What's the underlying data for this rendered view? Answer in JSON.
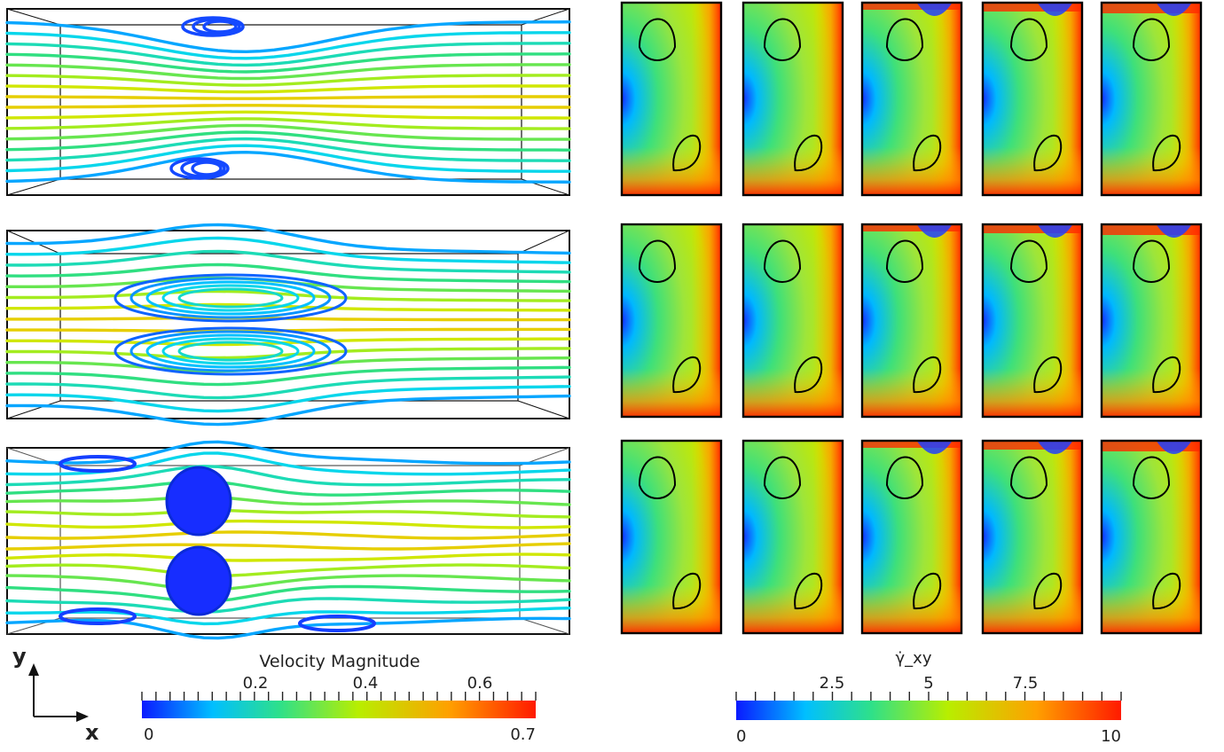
{
  "velocity_colorbar": {
    "title": "Velocity Magnitude",
    "ticks": [
      "0.2",
      "0.4",
      "0.6"
    ],
    "min_label": "0",
    "max_label": "0.7"
  },
  "shear_colorbar": {
    "title": "γ̇_xy",
    "ticks": [
      "2.5",
      "5",
      "7.5"
    ],
    "min_label": "0",
    "max_label": "10"
  },
  "axes_indicator": {
    "y_label": "y",
    "x_label": "x"
  },
  "colormap": [
    "#1a1aff",
    "#00d4ff",
    "#33e07a",
    "#c8f000",
    "#ffb300",
    "#ff1a00"
  ]
}
